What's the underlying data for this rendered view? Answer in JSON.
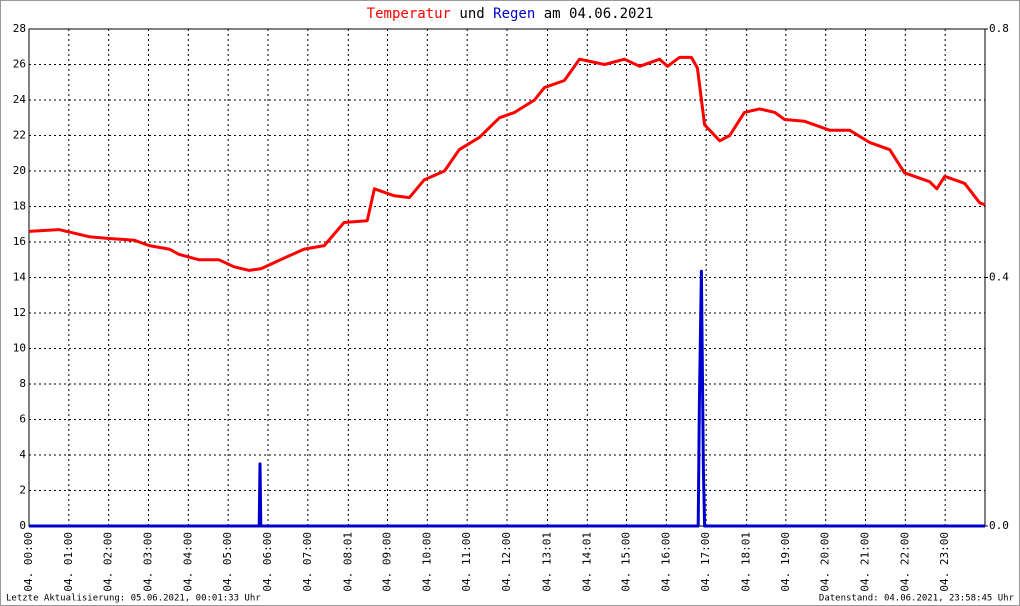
{
  "chart_data": {
    "type": "line",
    "title_joiner": "und",
    "title_date": "am 04.06.2021",
    "last_update": "Letzte Aktualisierung: 05.06.2021, 00:01:33 Uhr",
    "data_status": "Datenstand: 04.06.2021, 23:58:45 Uhr",
    "xlim": [
      0,
      24
    ],
    "xticks": [
      {
        "value": 0,
        "label": "04. 00:00"
      },
      {
        "value": 1,
        "label": "04. 01:00"
      },
      {
        "value": 2,
        "label": "04. 02:00"
      },
      {
        "value": 3,
        "label": "04. 03:00"
      },
      {
        "value": 4,
        "label": "04. 04:00"
      },
      {
        "value": 5,
        "label": "04. 05:00"
      },
      {
        "value": 6,
        "label": "04. 06:00"
      },
      {
        "value": 7,
        "label": "04. 07:00"
      },
      {
        "value": 8.0167,
        "label": "04. 08:01"
      },
      {
        "value": 9,
        "label": "04. 09:00"
      },
      {
        "value": 10,
        "label": "04. 10:00"
      },
      {
        "value": 11,
        "label": "04. 11:00"
      },
      {
        "value": 12,
        "label": "04. 12:00"
      },
      {
        "value": 13.0167,
        "label": "04. 13:01"
      },
      {
        "value": 14.0167,
        "label": "04. 14:01"
      },
      {
        "value": 15,
        "label": "04. 15:00"
      },
      {
        "value": 16,
        "label": "04. 16:00"
      },
      {
        "value": 17,
        "label": "04. 17:00"
      },
      {
        "value": 18.0167,
        "label": "04. 18:01"
      },
      {
        "value": 19,
        "label": "04. 19:00"
      },
      {
        "value": 20,
        "label": "04. 20:00"
      },
      {
        "value": 21,
        "label": "04. 21:00"
      },
      {
        "value": 22,
        "label": "04. 22:00"
      },
      {
        "value": 23,
        "label": "04. 23:00"
      }
    ],
    "ylim": [
      0,
      28
    ],
    "yticks": [
      0,
      2,
      4,
      6,
      8,
      10,
      12,
      14,
      16,
      18,
      20,
      22,
      24,
      26,
      28
    ],
    "y2lim": [
      0,
      0.8
    ],
    "y2ticks": [
      {
        "value": 0,
        "label": "0.0"
      },
      0.4,
      0.8
    ],
    "grid": true,
    "series": [
      {
        "name": "Temperatur",
        "color": "#ff0000",
        "x": [
          0,
          0.75,
          1.51,
          2.01,
          2.64,
          3.02,
          3.52,
          3.77,
          4.27,
          4.77,
          5.15,
          5.53,
          5.83,
          6.41,
          6.91,
          7.41,
          7.91,
          8.49,
          8.67,
          9.17,
          9.55,
          9.92,
          10.43,
          10.8,
          11.31,
          11.81,
          12.19,
          12.69,
          12.94,
          13.44,
          13.82,
          14.45,
          14.95,
          15.33,
          15.83,
          16.03,
          16.33,
          16.63,
          16.78,
          16.96,
          17.34,
          17.59,
          17.96,
          18.34,
          18.72,
          18.97,
          19.47,
          20.1,
          20.6,
          21.11,
          21.61,
          21.98,
          22.61,
          22.79,
          22.99,
          23.49,
          23.87,
          24
        ],
        "values": [
          16.6,
          16.7,
          16.3,
          16.2,
          16.1,
          15.8,
          15.6,
          15.3,
          15.0,
          15.0,
          14.6,
          14.4,
          14.5,
          15.1,
          15.6,
          15.8,
          17.1,
          17.2,
          19.0,
          18.6,
          18.5,
          19.5,
          20.0,
          21.2,
          21.9,
          23.0,
          23.3,
          24.0,
          24.7,
          25.1,
          26.3,
          26.0,
          26.3,
          25.9,
          26.3,
          25.9,
          26.4,
          26.4,
          25.8,
          22.6,
          21.7,
          22.0,
          23.3,
          23.5,
          23.3,
          22.9,
          22.8,
          22.3,
          22.3,
          21.6,
          21.2,
          19.9,
          19.4,
          19.0,
          19.7,
          19.3,
          18.2,
          18.1
        ]
      },
      {
        "name": "Regen",
        "color": "#0000cc",
        "axis": "y2",
        "x": [
          0,
          5.78,
          5.8,
          5.82,
          16.8,
          16.83,
          16.88,
          16.93,
          16.96,
          24
        ],
        "values": [
          0,
          0,
          0.1,
          0,
          0,
          0.2,
          0.41,
          0.09,
          0,
          0
        ]
      }
    ]
  }
}
